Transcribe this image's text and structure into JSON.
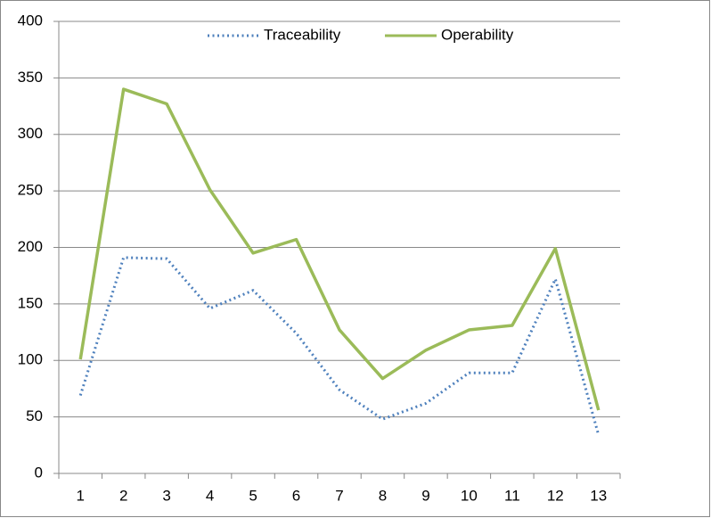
{
  "chart_data": {
    "type": "line",
    "categories": [
      "1",
      "2",
      "3",
      "4",
      "5",
      "6",
      "7",
      "8",
      "9",
      "10",
      "11",
      "12",
      "13"
    ],
    "series": [
      {
        "name": "Traceability",
        "color": "#4f81bd",
        "style": "dotted",
        "values": [
          69,
          191,
          190,
          146,
          162,
          124,
          74,
          48,
          62,
          89,
          89,
          172,
          34
        ]
      },
      {
        "name": "Operability",
        "color": "#9bbb59",
        "style": "solid",
        "values": [
          101,
          340,
          327,
          251,
          195,
          207,
          127,
          84,
          109,
          127,
          131,
          199,
          56
        ]
      }
    ],
    "ylim": [
      0,
      400
    ],
    "yticks": [
      0,
      50,
      100,
      150,
      200,
      250,
      300,
      350,
      400
    ],
    "grid": true,
    "legend": "top"
  }
}
